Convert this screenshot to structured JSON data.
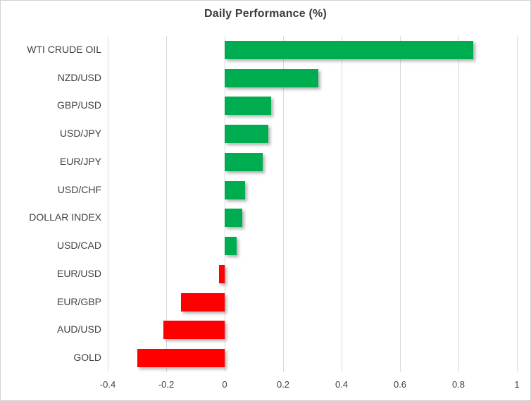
{
  "title": "Daily Performance (%)",
  "colors": {
    "positive": "#00AC50",
    "negative": "#FF0000",
    "gridline": "#D9D9D9",
    "text": "#404040",
    "border": "#D2D2D2",
    "background": "#FFFFFF"
  },
  "chart_data": {
    "type": "bar",
    "orientation": "horizontal",
    "title": "Daily Performance (%)",
    "categories": [
      "WTI CRUDE OIL",
      "NZD/USD",
      "GBP/USD",
      "USD/JPY",
      "EUR/JPY",
      "USD/CHF",
      "DOLLAR INDEX",
      "USD/CAD",
      "EUR/USD",
      "EUR/GBP",
      "AUD/USD",
      "GOLD"
    ],
    "values": [
      0.85,
      0.32,
      0.16,
      0.15,
      0.13,
      0.07,
      0.06,
      0.04,
      -0.02,
      -0.15,
      -0.21,
      -0.3
    ],
    "xlabel": "",
    "ylabel": "",
    "xlim": [
      -0.4,
      1.0
    ],
    "xticks": [
      -0.4,
      -0.2,
      0,
      0.2,
      0.4,
      0.6,
      0.8,
      1
    ],
    "xtick_labels": [
      "-0.4",
      "-0.2",
      "0",
      "0.2",
      "0.4",
      "0.6",
      "0.8",
      "1"
    ],
    "grid": true,
    "legend": "none",
    "positive_color": "#00AC50",
    "negative_color": "#FF0000"
  }
}
